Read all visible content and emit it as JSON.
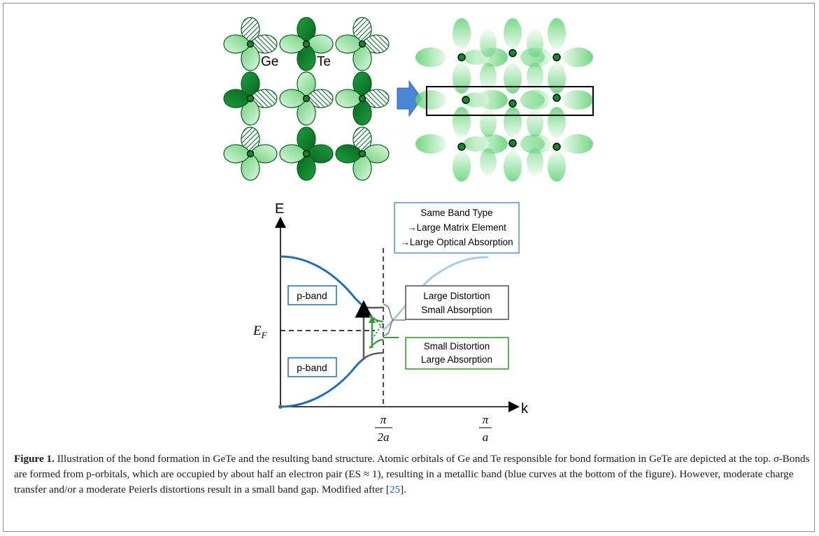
{
  "orbitals": {
    "ge_label": "Ge",
    "te_label": "Te"
  },
  "band_diagram": {
    "y_axis_label": "E",
    "x_axis_label": "k",
    "fermi_label_main": "E",
    "fermi_label_sub": "F",
    "tick_mid_num": "π",
    "tick_mid_den": "2a",
    "tick_end_num": "π",
    "tick_end_den": "a",
    "pband_upper": "p-band",
    "pband_lower": "p-band",
    "box_same_band": [
      "Same Band Type",
      "→Large Matrix Element",
      "→Large Optical Absorption"
    ],
    "box_large_distortion": [
      "Large Distortion",
      "Small Absorption"
    ],
    "box_small_distortion": [
      "Small Distortion",
      "Large Absorption"
    ]
  },
  "colors": {
    "band_blue": "#1f6fb4",
    "light_blue": "#a9cbe8",
    "box_blue": "#5b9bd5",
    "box_gray": "#595959",
    "box_green": "#3a9a3a",
    "orbital_dark": "#0c7d2c",
    "orbital_light": "#8fe39a",
    "arrow_blue": "#4a86d6"
  },
  "caption": {
    "label": "Figure 1.",
    "text_1": " Illustration of the bond formation in GeTe and the resulting band structure. Atomic orbitals of Ge and Te responsible for bond formation in GeTe are depicted at the top. ",
    "sigma": "σ",
    "text_2": "-Bonds are formed from p-orbitals, which are occupied by about half an electron pair (ES ≈ 1), resulting in a metallic band (blue curves at the bottom of the figure). However, moderate charge transfer and/or a moderate Peierls distortions result in a small band gap. Modified after [",
    "ref": "25",
    "text_3": "]."
  }
}
